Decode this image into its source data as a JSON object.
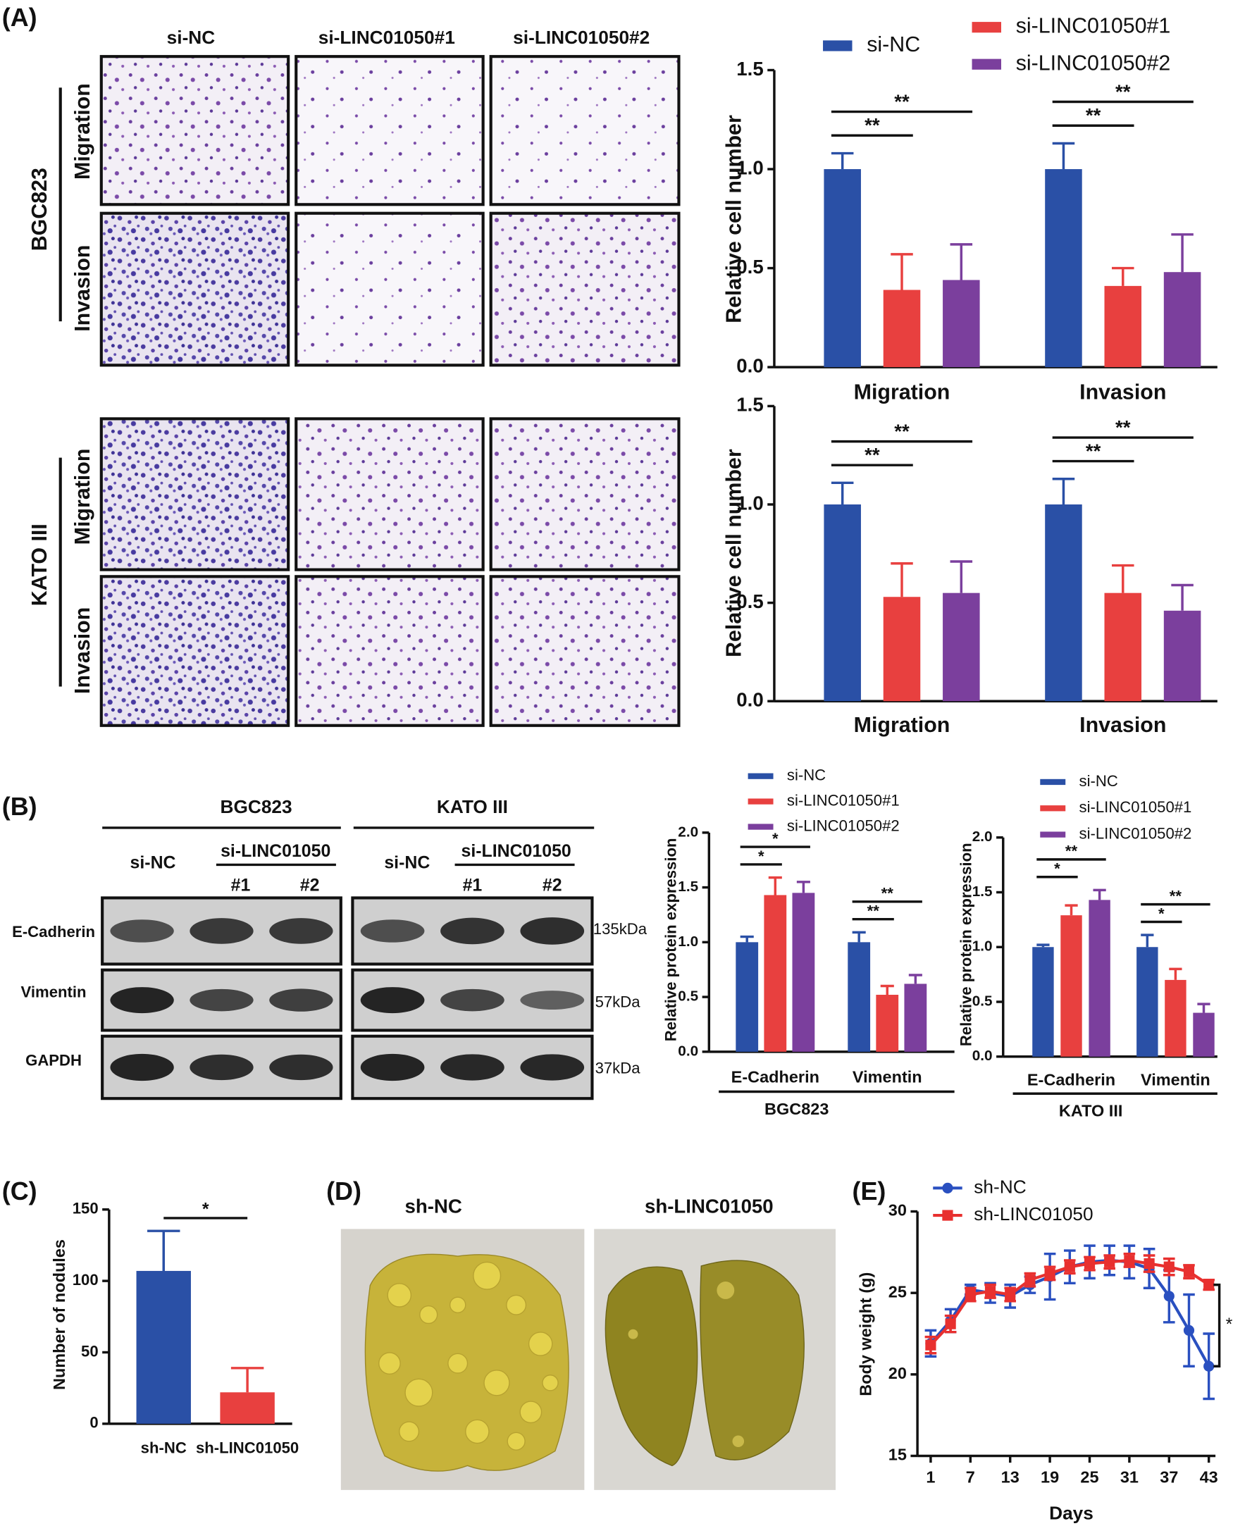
{
  "figure_text": {
    "panel_labels": [
      "(A)",
      "(B)",
      "(C)",
      "(D)",
      "(E)"
    ],
    "a": {
      "columns": [
        "si-NC",
        "si-LINC01050#1",
        "si-LINC01050#2"
      ],
      "cell_lines": [
        "BGC823",
        "KATO III"
      ],
      "assays": [
        "Migration",
        "Invasion",
        "Migration",
        "Invasion"
      ]
    },
    "b": {
      "cell_lines": [
        "BGC823",
        "KATO III"
      ],
      "groups": [
        "si-NC",
        "si-LINC01050",
        "#1",
        "#2",
        "si-NC",
        "si-LINC01050",
        "#1",
        "#2"
      ],
      "proteins": [
        "E-Cadherin",
        "Vimentin",
        "GAPDH"
      ],
      "sizes": [
        "135kDa",
        "57kDa",
        "37kDa"
      ]
    },
    "d": {
      "groups": [
        "sh-NC",
        "sh-LINC01050"
      ]
    }
  },
  "chart_data": [
    {
      "type": "bar",
      "ylabel": "Relative cell number",
      "categories": [
        "Migration",
        "Invasion"
      ],
      "series": [
        {
          "name": "si-NC",
          "color": "#2a50a6",
          "values": [
            1.0,
            1.0
          ],
          "errors": [
            0.08,
            0.13
          ]
        },
        {
          "name": "si-LINC01050#1",
          "color": "#e8403f",
          "values": [
            0.39,
            0.41
          ],
          "errors": [
            0.18,
            0.09
          ]
        },
        {
          "name": "si-LINC01050#2",
          "color": "#7b3f9d",
          "values": [
            0.44,
            0.48
          ],
          "errors": [
            0.18,
            0.19
          ]
        }
      ],
      "ylim": [
        0,
        1.5
      ],
      "yticks": [
        {
          "value": 0,
          "label": "0.0"
        },
        {
          "value": 0.5,
          "label": "0.5"
        },
        {
          "value": 1,
          "label": "1.0"
        },
        {
          "value": 1.5,
          "label": "1.5"
        }
      ],
      "annotations": [
        "**",
        "**",
        "**",
        "**"
      ],
      "legend": true
    },
    {
      "type": "bar",
      "ylabel": "Relative cell number",
      "categories": [
        "Migration",
        "Invasion"
      ],
      "series": [
        {
          "color": "#2a50a6",
          "values": [
            1.0,
            1.0
          ],
          "errors": [
            0.11,
            0.13
          ]
        },
        {
          "color": "#e8403f",
          "values": [
            0.53,
            0.55
          ],
          "errors": [
            0.17,
            0.14
          ]
        },
        {
          "color": "#7b3f9d",
          "values": [
            0.55,
            0.46
          ],
          "errors": [
            0.16,
            0.13
          ]
        }
      ],
      "ylim": [
        0,
        1.5
      ],
      "yticks": [
        {
          "value": 0,
          "label": "0.0"
        },
        {
          "value": 0.5,
          "label": "0.5"
        },
        {
          "value": 1,
          "label": "1.0"
        },
        {
          "value": 1.5,
          "label": "1.5"
        }
      ],
      "annotations": [
        "**",
        "**",
        "**",
        "**"
      ],
      "legend": false
    },
    {
      "type": "bar",
      "ylabel": "Relative protein expression",
      "xlabel": "BGC823",
      "categories": [
        "E-Cadherin",
        "Vimentin"
      ],
      "series": [
        {
          "name": "si-NC",
          "color": "#2a50a6",
          "values": [
            1.0,
            1.0
          ],
          "errors": [
            0.05,
            0.09
          ]
        },
        {
          "name": "si-LINC01050#1",
          "color": "#e8403f",
          "values": [
            1.43,
            0.52
          ],
          "errors": [
            0.16,
            0.08
          ]
        },
        {
          "name": "si-LINC01050#2",
          "color": "#7b3f9d",
          "values": [
            1.45,
            0.62
          ],
          "errors": [
            0.1,
            0.08
          ]
        }
      ],
      "ylim": [
        0,
        2
      ],
      "yticks": [
        {
          "value": 0,
          "label": "0.0"
        },
        {
          "value": 0.5,
          "label": "0.5"
        },
        {
          "value": 1,
          "label": "1.0"
        },
        {
          "value": 1.5,
          "label": "1.5"
        },
        {
          "value": 2,
          "label": "2.0"
        }
      ],
      "annotations": [
        "*",
        "*",
        "**",
        "**"
      ],
      "legend": true
    },
    {
      "type": "bar",
      "ylabel": "Relative protein expression",
      "xlabel": "KATO III",
      "categories": [
        "E-Cadherin",
        "Vimentin"
      ],
      "series": [
        {
          "name": "si-NC",
          "color": "#2a50a6",
          "values": [
            1.0,
            1.0
          ],
          "errors": [
            0.02,
            0.11
          ]
        },
        {
          "name": "si-LINC01050#1",
          "color": "#e8403f",
          "values": [
            1.29,
            0.7
          ],
          "errors": [
            0.09,
            0.1
          ]
        },
        {
          "name": "si-LINC01050#2",
          "color": "#7b3f9d",
          "values": [
            1.43,
            0.4
          ],
          "errors": [
            0.09,
            0.08
          ]
        }
      ],
      "ylim": [
        0,
        2
      ],
      "yticks": [
        {
          "value": 0,
          "label": "0.0"
        },
        {
          "value": 0.5,
          "label": "0.5"
        },
        {
          "value": 1,
          "label": "1.0"
        },
        {
          "value": 1.5,
          "label": "1.5"
        },
        {
          "value": 2,
          "label": "2.0"
        }
      ],
      "annotations": [
        "*",
        "**",
        "*",
        "**"
      ],
      "legend": true
    },
    {
      "type": "bar",
      "ylabel": "Number of nodules",
      "categories": [
        "sh-NC",
        "sh-LINC01050"
      ],
      "series": [
        {
          "colors": [
            "#2a50a6",
            "#e8403f"
          ],
          "values": [
            107,
            22
          ],
          "errors": [
            28,
            17
          ]
        }
      ],
      "ylim": [
        0,
        150
      ],
      "yticks": [
        0,
        50,
        100,
        150
      ],
      "annotations": [
        "*"
      ],
      "legend": false
    },
    {
      "type": "line",
      "ylabel": "Body weight (g)",
      "xlabel": "Days",
      "x": [
        1,
        4,
        7,
        10,
        13,
        16,
        19,
        22,
        25,
        28,
        31,
        34,
        37,
        40,
        43
      ],
      "series": [
        {
          "name": "sh-NC",
          "color": "#2a50c0",
          "marker": "circle",
          "values": [
            21.9,
            23.3,
            25.2,
            25.0,
            24.8,
            25.5,
            26.0,
            26.6,
            26.9,
            27.0,
            26.9,
            26.5,
            24.8,
            22.7,
            20.5
          ],
          "errors": [
            0.8,
            0.7,
            0.3,
            0.6,
            0.7,
            0.5,
            1.4,
            1.0,
            1.0,
            0.9,
            1.0,
            1.2,
            1.6,
            2.2,
            2.0
          ]
        },
        {
          "name": "sh-LINC01050",
          "color": "#e8302f",
          "marker": "square",
          "values": [
            21.8,
            23.1,
            24.9,
            25.1,
            24.9,
            25.8,
            26.2,
            26.6,
            26.8,
            26.9,
            27.0,
            26.8,
            26.6,
            26.3,
            25.5
          ],
          "errors": [
            0.5,
            0.5,
            0.4,
            0.4,
            0.4,
            0.4,
            0.4,
            0.4,
            0.4,
            0.4,
            0.4,
            0.5,
            0.5,
            0.4,
            0.3
          ]
        }
      ],
      "xlim": [
        -1,
        44
      ],
      "xticks": [
        1,
        7,
        13,
        19,
        25,
        31,
        37,
        43
      ],
      "ylim": [
        15,
        30
      ],
      "yticks": [
        15,
        20,
        25,
        30
      ],
      "annotations": [
        "*"
      ],
      "legend": true
    }
  ]
}
